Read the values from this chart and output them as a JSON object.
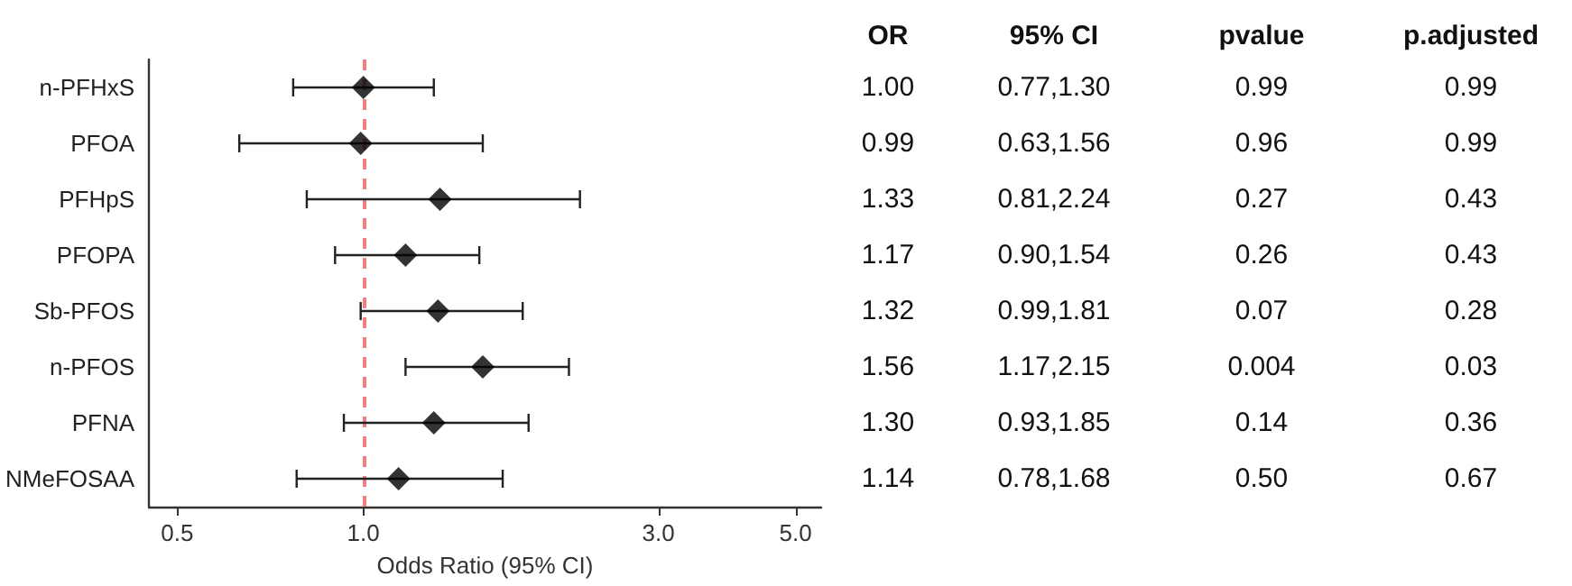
{
  "chart_data": {
    "type": "scatter",
    "orientation": "horizontal",
    "xlabel": "Odds Ratio (95% CI)",
    "categories": [
      "n-PFHxS",
      "PFOA",
      "PFHpS",
      "PFOPA",
      "Sb-PFOS",
      "n-PFOS",
      "PFNA",
      "NMeFOSAA"
    ],
    "values": [
      1.0,
      0.99,
      1.33,
      1.17,
      1.32,
      1.56,
      1.3,
      1.14
    ],
    "value_labels": [
      "1.00",
      "0.99",
      "1.33",
      "1.17",
      "1.32",
      "1.56",
      "1.30",
      "1.14"
    ],
    "errors": [
      [
        0.77,
        1.3
      ],
      [
        0.63,
        1.56
      ],
      [
        0.81,
        2.24
      ],
      [
        0.9,
        1.54
      ],
      [
        0.99,
        1.81
      ],
      [
        1.17,
        2.15
      ],
      [
        0.93,
        1.85
      ],
      [
        0.78,
        1.68
      ]
    ],
    "color": "#000000",
    "marker": "diamond",
    "log": "x",
    "grid": false,
    "xlim": [
      0.45,
      5.5
    ],
    "xticks": [
      {
        "value": 0.5,
        "label": "0.5"
      },
      {
        "value": 1,
        "label": "1.0"
      },
      {
        "value": 3,
        "label": "3.0"
      },
      {
        "value": 5,
        "label": "5.0"
      }
    ],
    "ref_lines": [
      {
        "axis": "x",
        "value": 1,
        "color": "#f08080",
        "line_style": "dashed"
      }
    ],
    "annotations": [
      "OR",
      "95% CI",
      "pvalue",
      "p.adjusted",
      "0.77,1.30",
      "0.63,1.56",
      "0.81,2.24",
      "0.90,1.54",
      "0.99,1.81",
      "1.17,2.15",
      "0.93,1.85",
      "0.78,1.68",
      "0.99",
      "0.96",
      "0.27",
      "0.26",
      "0.07",
      "0.004",
      "0.14",
      "0.50",
      "0.99",
      "0.99",
      "0.43",
      "0.43",
      "0.28",
      "0.03",
      "0.36",
      "0.67"
    ]
  }
}
